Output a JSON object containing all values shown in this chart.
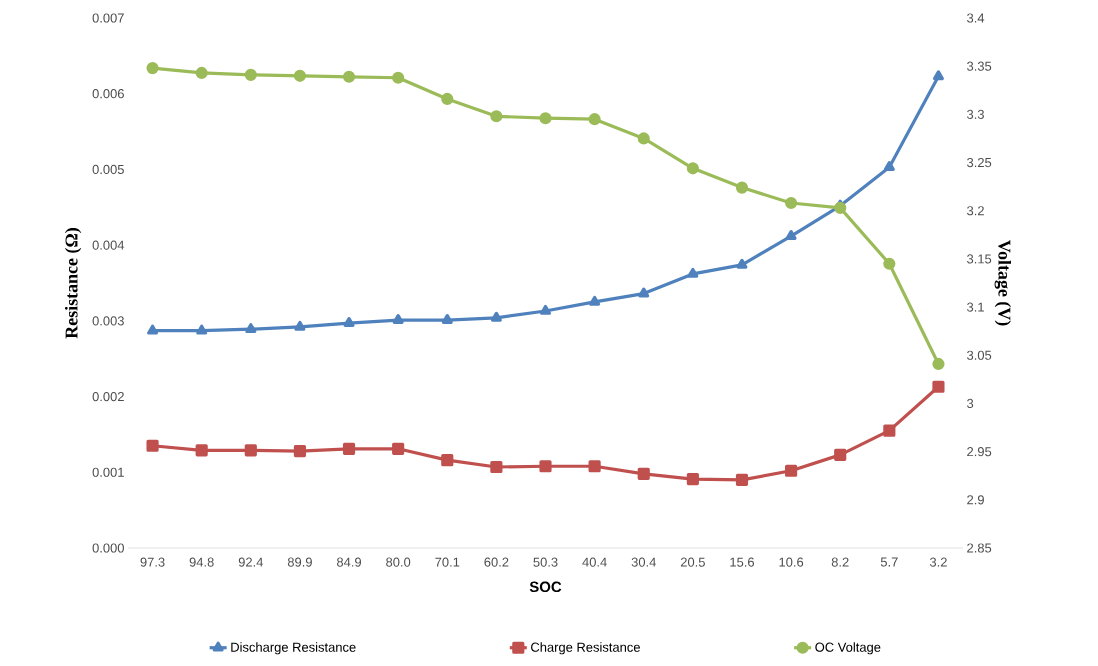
{
  "chart_data": {
    "type": "line",
    "xlabel": "SOC",
    "ylabel": "Resistance (Ω)",
    "y2label": "Voltage (V)",
    "categories": [
      "97.3",
      "94.8",
      "92.4",
      "89.9",
      "84.9",
      "80.0",
      "70.1",
      "60.2",
      "50.3",
      "40.4",
      "30.4",
      "20.5",
      "15.6",
      "10.6",
      "8.2",
      "5.7",
      "3.2"
    ],
    "series": [
      {
        "name": "Discharge Resistance",
        "color": "#4f81bd",
        "marker": "triangle",
        "values": [
          0.00287,
          0.00287,
          0.00289,
          0.00292,
          0.00297,
          0.00301,
          0.00301,
          0.00304,
          0.00313,
          0.00325,
          0.00336,
          0.00362,
          0.00374,
          0.00412,
          0.00452,
          0.00503,
          0.00623
        ]
      },
      {
        "name": "Charge Resistance",
        "color": "#c0504d",
        "marker": "square",
        "values": [
          0.00135,
          0.00129,
          0.00129,
          0.00128,
          0.00131,
          0.00131,
          0.00116,
          0.00107,
          0.00108,
          0.00108,
          0.00098,
          0.00091,
          0.0009,
          0.00102,
          0.00123,
          0.00155,
          0.00213
        ]
      },
      {
        "name": "OC Voltage",
        "color": "#9bbb59",
        "marker": "circle",
        "axis": "y2",
        "values": [
          3.348,
          3.343,
          3.341,
          3.34,
          3.339,
          3.338,
          3.316,
          3.298,
          3.296,
          3.295,
          3.275,
          3.244,
          3.224,
          3.208,
          3.203,
          3.145,
          3.041
        ]
      }
    ],
    "ylim": [
      0,
      0.007
    ],
    "yticks": [
      {
        "value": 0,
        "label": "0.000"
      },
      {
        "value": 0.001,
        "label": "0.001"
      },
      {
        "value": 0.002,
        "label": "0.002"
      },
      {
        "value": 0.003,
        "label": "0.003"
      },
      {
        "value": 0.004,
        "label": "0.004"
      },
      {
        "value": 0.005,
        "label": "0.005"
      },
      {
        "value": 0.006,
        "label": "0.006"
      },
      {
        "value": 0.007,
        "label": "0.007"
      }
    ],
    "y2lim": [
      2.85,
      3.4
    ],
    "y2ticks": [
      2.85,
      2.9,
      2.95,
      3,
      3.05,
      3.1,
      3.15,
      3.2,
      3.25,
      3.3,
      3.35,
      3.4
    ],
    "grid": false,
    "legend": "bottom",
    "line_style": "solid"
  }
}
